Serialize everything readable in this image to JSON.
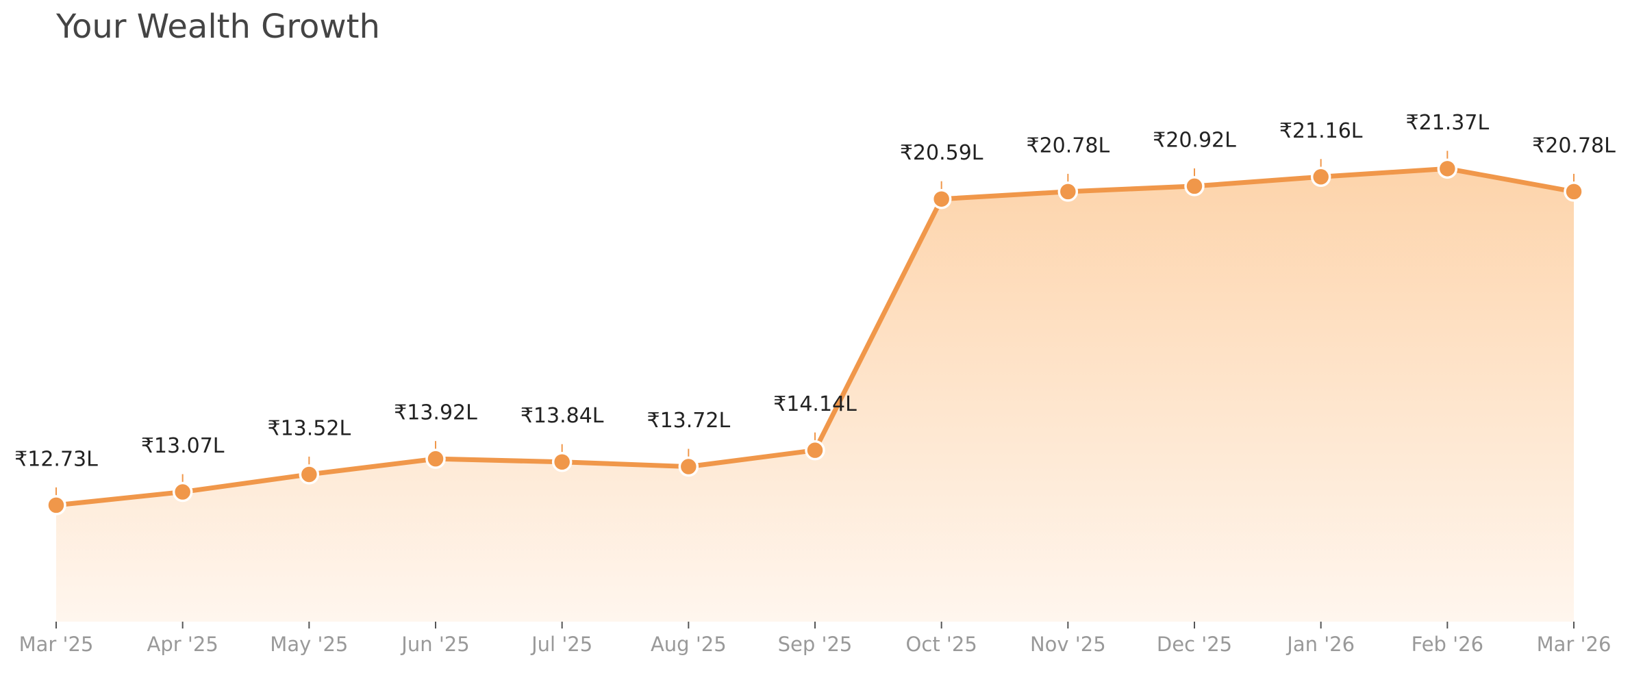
{
  "chart_data": {
    "type": "area",
    "title": "Your Wealth Growth",
    "categories": [
      "Mar '25",
      "Apr '25",
      "May '25",
      "Jun '25",
      "Jul '25",
      "Aug '25",
      "Sep '25",
      "Oct '25",
      "Nov '25",
      "Dec '25",
      "Jan '26",
      "Feb '26",
      "Mar '26"
    ],
    "values": [
      12.73,
      13.07,
      13.52,
      13.92,
      13.84,
      13.72,
      14.14,
      20.59,
      20.78,
      20.92,
      21.16,
      21.37,
      20.78
    ],
    "value_labels": [
      "₹12.73L",
      "₹13.07L",
      "₹13.52L",
      "₹13.92L",
      "₹13.84L",
      "₹13.72L",
      "₹14.14L",
      "₹20.59L",
      "₹20.78L",
      "₹20.92L",
      "₹21.16L",
      "₹21.37L",
      "₹20.78L"
    ],
    "color": "#f0974a",
    "ylim": [
      9.74,
      24.1
    ]
  }
}
